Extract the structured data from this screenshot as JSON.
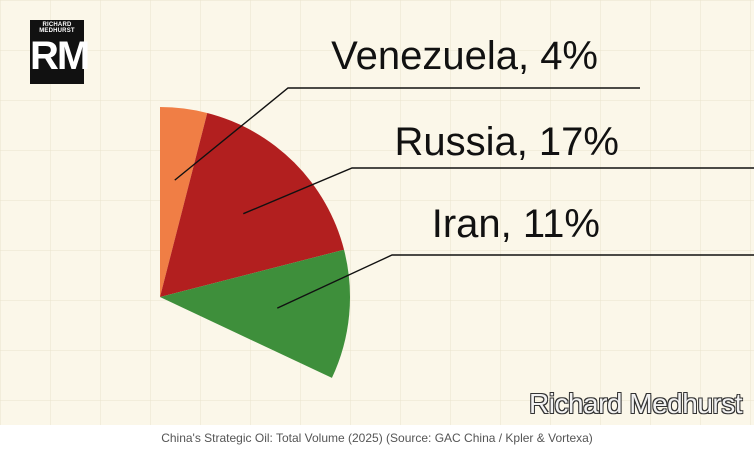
{
  "logo": {
    "small_text": "RICHARD MEDHURST",
    "initials": "RM"
  },
  "chart_data": {
    "type": "pie",
    "title": "",
    "slices": [
      {
        "label": "Venezuela, 4%",
        "value": 4,
        "color": "#f07e45"
      },
      {
        "label": "Russia, 17%",
        "value": 17,
        "color": "#b21f1f"
      },
      {
        "label": "Iran, 11%",
        "value": 11,
        "color": "#3e8f3b"
      }
    ]
  },
  "watermark": "Richard Medhurst",
  "caption": "China's Strategic Oil: Total Volume (2025) (Source: GAC China / Kpler & Vortexa)",
  "colors": {
    "background": "#fbf7e9",
    "grid": "#e9e3cd"
  }
}
